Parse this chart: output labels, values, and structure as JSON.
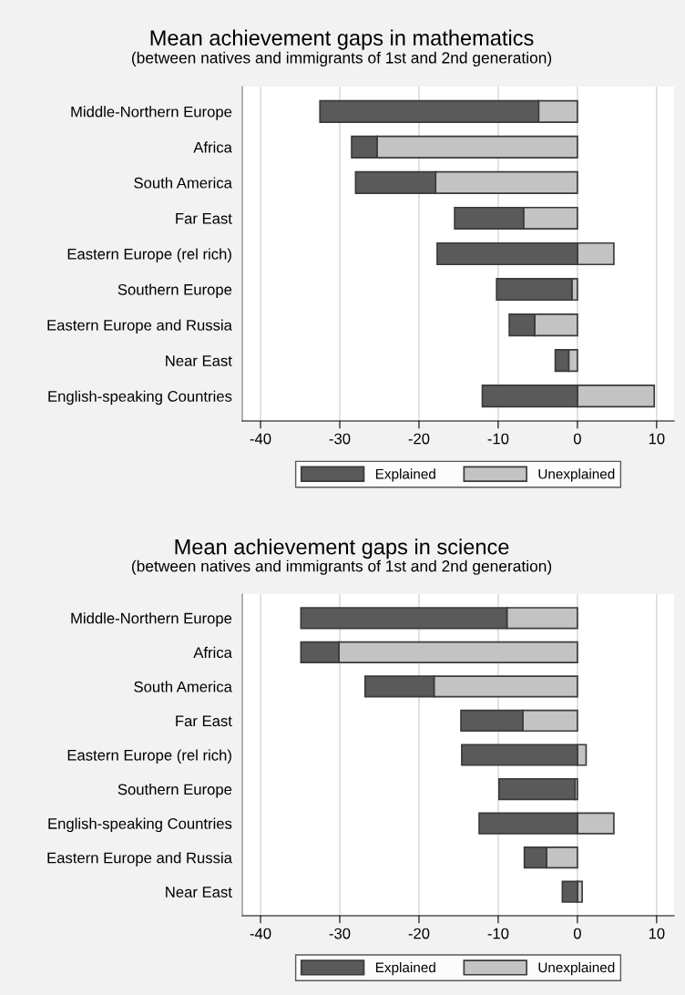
{
  "chart_data": [
    {
      "type": "bar",
      "orientation": "horizontal",
      "stacked": true,
      "title": "Mean achievement gaps in mathematics",
      "subtitle": "(between natives and immigrants of 1st and 2nd generation)",
      "categories": [
        "Middle-Northern Europe",
        "Africa",
        "South America",
        "Far East",
        "Eastern Europe (rel rich)",
        "Southern Europe",
        "Eastern Europe and Russia",
        "Near East",
        "English-speaking Countries"
      ],
      "series": [
        {
          "name": "Unexplained",
          "color": "#c3c3c3",
          "values": [
            -4.9,
            -25.3,
            -17.9,
            -6.8,
            4.6,
            -0.7,
            -5.4,
            -1.1,
            9.7
          ]
        },
        {
          "name": "Explained",
          "color": "#5a5a5a",
          "values": [
            -27.6,
            -3.2,
            -10.1,
            -8.7,
            -17.7,
            -9.5,
            -3.2,
            -1.7,
            -12.0
          ]
        }
      ],
      "xlim": [
        -42.3,
        12.2
      ],
      "xticks": [
        -40,
        -30,
        -20,
        -10,
        0,
        10
      ],
      "grid": "x",
      "legend": "bottom"
    },
    {
      "type": "bar",
      "orientation": "horizontal",
      "stacked": true,
      "title": "Mean achievement gaps in science",
      "subtitle": "(between natives and immigrants of 1st and 2nd generation)",
      "categories": [
        "Middle-Northern Europe",
        "Africa",
        "South America",
        "Far East",
        "Eastern Europe (rel rich)",
        "Southern Europe",
        "English-speaking Countries",
        "Eastern Europe and Russia",
        "Near East"
      ],
      "series": [
        {
          "name": "Unexplained",
          "color": "#c3c3c3",
          "values": [
            -8.9,
            -30.1,
            -18.1,
            -6.9,
            1.1,
            -0.3,
            4.6,
            -3.9,
            0.6
          ]
        },
        {
          "name": "Explained",
          "color": "#5a5a5a",
          "values": [
            -26.0,
            -4.8,
            -8.7,
            -7.8,
            -14.6,
            -9.6,
            -12.4,
            -2.8,
            -1.9
          ]
        }
      ],
      "xlim": [
        -42.3,
        12.2
      ],
      "xticks": [
        -40,
        -30,
        -20,
        -10,
        0,
        10
      ],
      "grid": "x",
      "legend": "bottom"
    }
  ]
}
